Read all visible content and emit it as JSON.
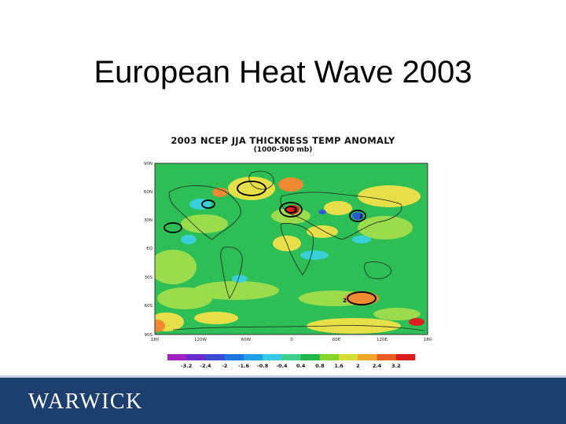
{
  "slide": {
    "title": "European Heat Wave 2003"
  },
  "map": {
    "title": "2003 NCEP JJA THICKNESS TEMP ANOMALY",
    "subtitle": "(1000-500 mb)",
    "lat_labels": [
      "90N",
      "60N",
      "30N",
      "EQ",
      "30S",
      "60S",
      "90S"
    ],
    "lon_labels": [
      "180",
      "120W",
      "60W",
      "0",
      "60E",
      "120E",
      "180"
    ],
    "contour_labels": [
      "3",
      "2",
      "2"
    ],
    "colorbar": {
      "labels": [
        "-3.2",
        "-2.4",
        "-2",
        "-1.6",
        "-0.8",
        "-0.4",
        "0.4",
        "0.8",
        "1.6",
        "2",
        "2.4",
        "3.2"
      ],
      "colors": [
        "#a020c0",
        "#6a2ccf",
        "#3c4ad8",
        "#1f74e0",
        "#1ea0e6",
        "#37c9e8",
        "#3fd08a",
        "#20b84a",
        "#86d62a",
        "#d6dc33",
        "#f0a42a",
        "#ea5c22",
        "#d81e1e"
      ]
    },
    "palette": {
      "background": "#2dbf55",
      "light_green": "#9bdc4c",
      "yellow": "#e6df48",
      "cyan": "#38d0d8",
      "orange": "#ef8a32",
      "red": "#e02020",
      "blue": "#2a5ad8"
    }
  },
  "footer": {
    "logo": "WARWICK",
    "bar_color": "#1d3f6f"
  }
}
